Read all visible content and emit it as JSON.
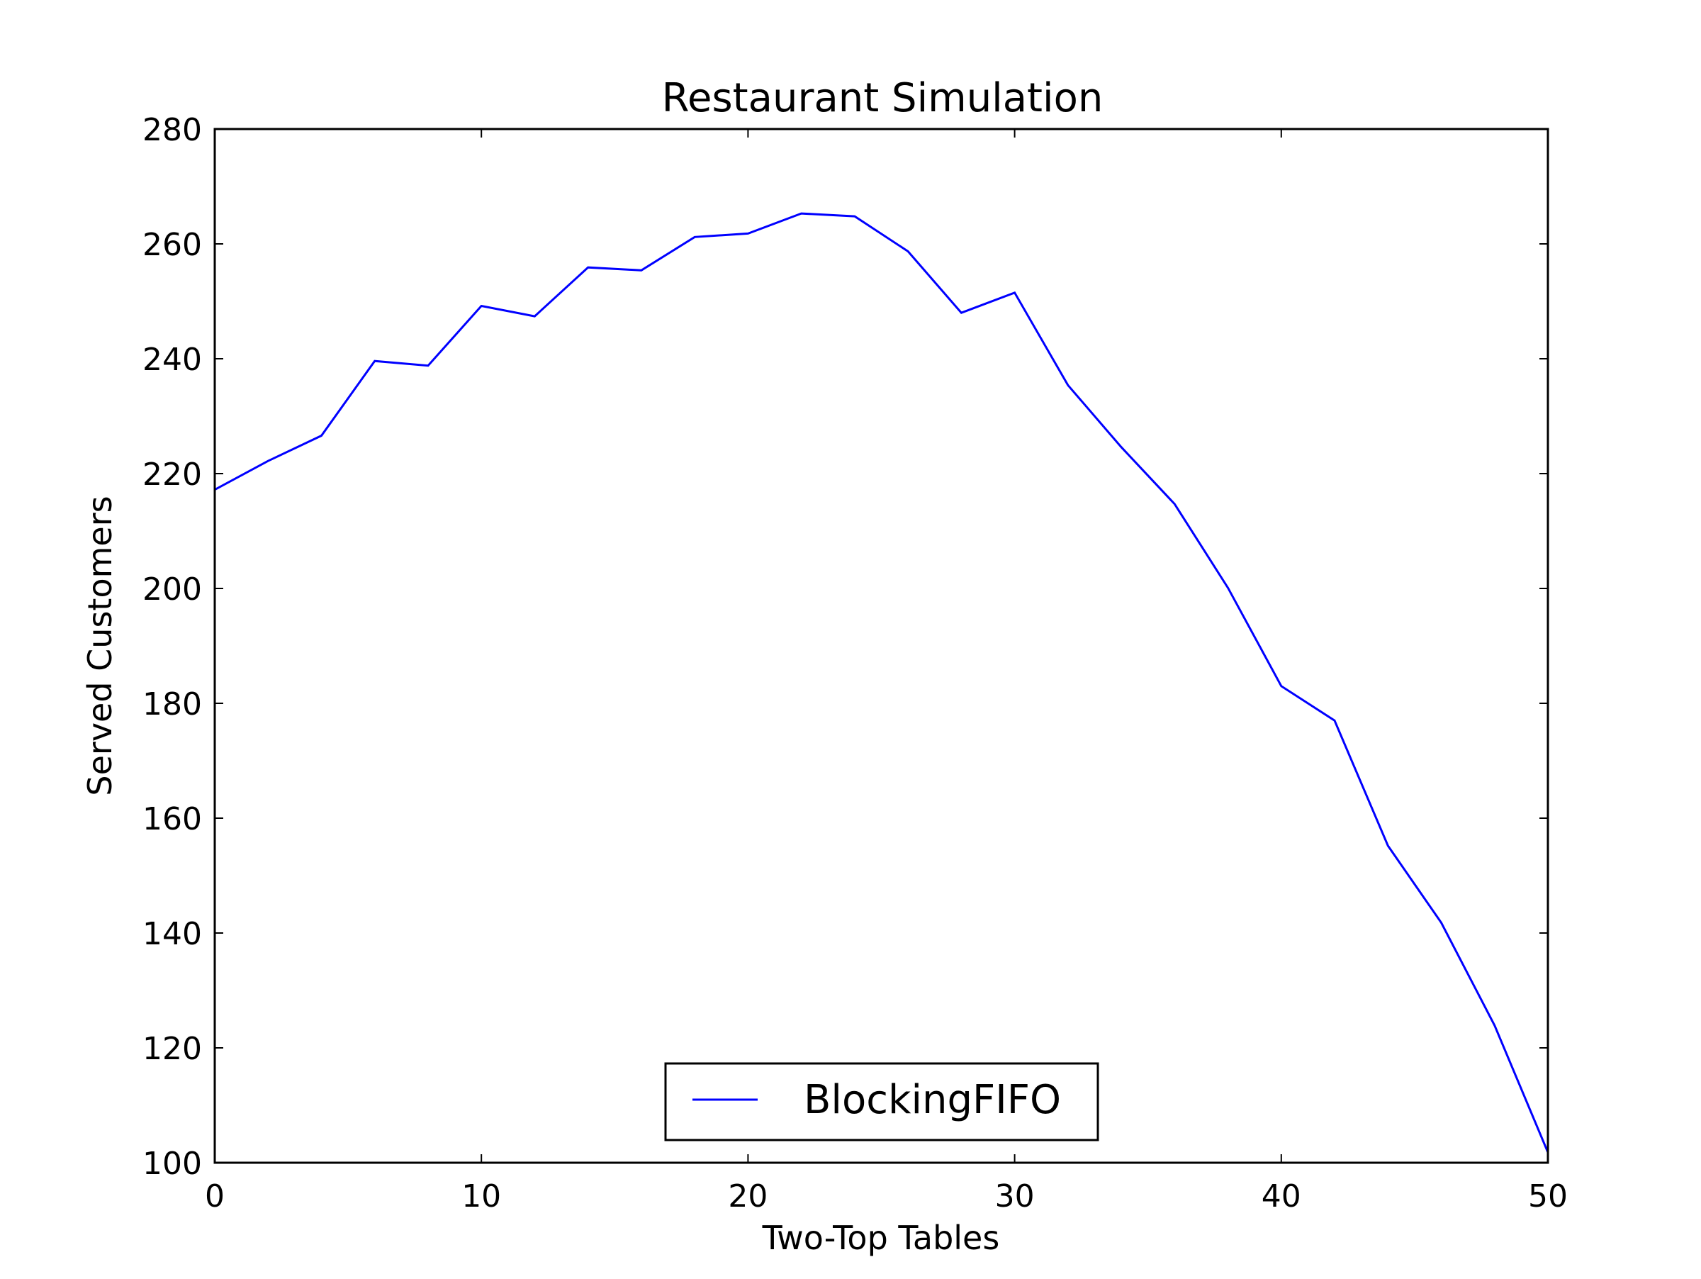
{
  "chart_data": {
    "type": "line",
    "title": "Restaurant Simulation",
    "xlabel": "Two-Top Tables",
    "ylabel": "Served Customers",
    "xlim": [
      0,
      50
    ],
    "ylim": [
      100,
      280
    ],
    "xticks": [
      0,
      10,
      20,
      30,
      40,
      50
    ],
    "yticks": [
      100,
      120,
      140,
      160,
      180,
      200,
      220,
      240,
      260,
      280
    ],
    "grid": false,
    "legend_position": "lower-center",
    "series": [
      {
        "name": "BlockingFIFO",
        "color": "#0000ff",
        "x": [
          0,
          2,
          4,
          6,
          8,
          10,
          12,
          14,
          16,
          18,
          20,
          22,
          24,
          26,
          28,
          30,
          32,
          34,
          36,
          38,
          40,
          42,
          44,
          46,
          48,
          50
        ],
        "y": [
          217.2,
          222.2,
          226.6,
          239.6,
          238.8,
          249.2,
          247.4,
          255.9,
          255.4,
          261.2,
          261.8,
          265.3,
          264.8,
          258.7,
          248.0,
          251.5,
          235.4,
          224.6,
          214.7,
          200.1,
          183.0,
          177.0,
          155.2,
          141.8,
          123.9,
          101.8
        ]
      }
    ]
  }
}
